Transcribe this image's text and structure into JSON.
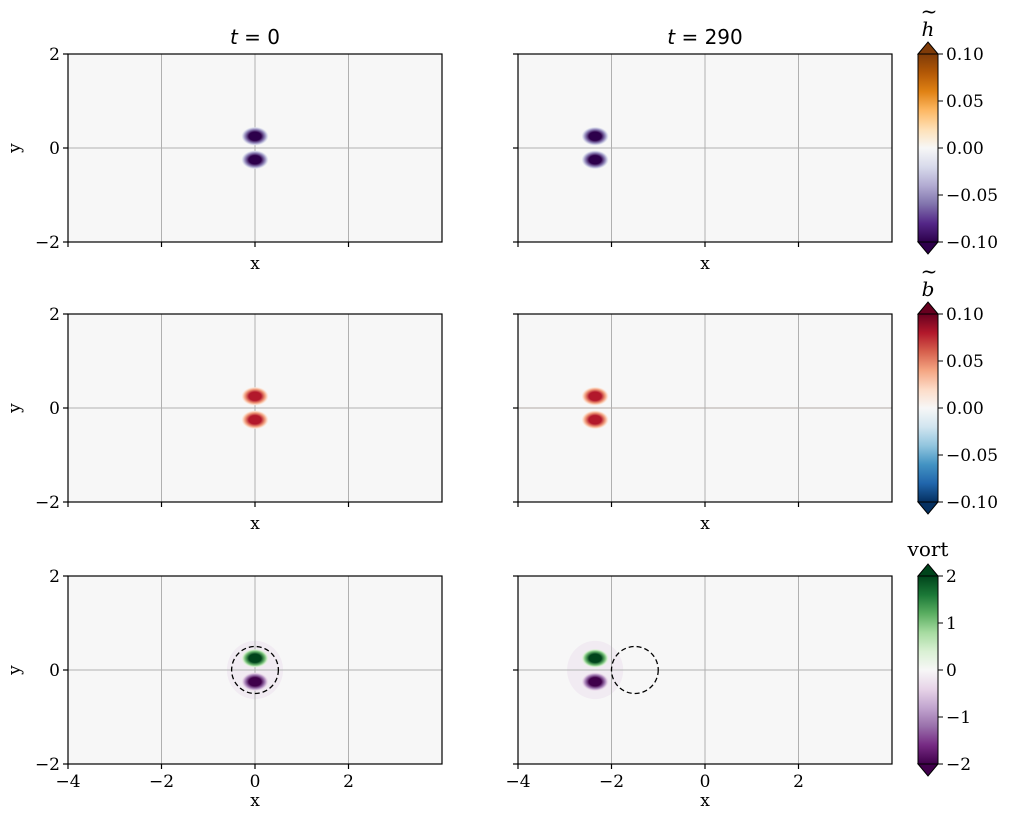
{
  "chart_data": {
    "type": "heatmap",
    "layout": "3 rows x 2 columns",
    "columns": [
      {
        "title_var": "t",
        "title_value": "= 0",
        "time": 0,
        "dipole_center_x": 0
      },
      {
        "title_var": "t",
        "title_value": "= 290",
        "time": 290,
        "dipole_center_x": -2.35
      }
    ],
    "xlabel": "x",
    "ylabel": "y",
    "xlim": [
      -4,
      4
    ],
    "ylim": [
      -2,
      2
    ],
    "xticks": [
      -4,
      -2,
      0,
      2
    ],
    "yticks": [
      -2,
      0,
      2
    ],
    "xtick_labels": [
      "−4",
      "−2",
      "0",
      "2"
    ],
    "ytick_labels": [
      "−2",
      "0",
      "2"
    ],
    "grid": true,
    "rows": [
      {
        "field": "h_tilde",
        "colorbar_label_base": "h",
        "colorbar_label_mark": "~",
        "colormap": "PuOr",
        "vmin": -0.1,
        "vmax": 0.1,
        "colorbar_ticks": [
          0.1,
          0.05,
          0.0,
          -0.05,
          -0.1
        ],
        "colorbar_tick_labels": [
          "0.10",
          "0.05",
          "0.00",
          "−0.05",
          "−0.10"
        ],
        "colorbar_extend": "both",
        "blobs": [
          {
            "y": 0.25,
            "value": -0.1
          },
          {
            "y": -0.25,
            "value": -0.1
          }
        ],
        "show_x_ticklabels": false,
        "dashed_circle": false
      },
      {
        "field": "b_tilde",
        "colorbar_label_base": "b",
        "colorbar_label_mark": "~",
        "colormap": "RdBu_r",
        "vmin": -0.1,
        "vmax": 0.1,
        "colorbar_ticks": [
          0.1,
          0.05,
          0.0,
          -0.05,
          -0.1
        ],
        "colorbar_tick_labels": [
          "0.10",
          "0.05",
          "0.00",
          "−0.05",
          "−0.10"
        ],
        "colorbar_extend": "both",
        "blobs": [
          {
            "y": 0.25,
            "value": 0.08
          },
          {
            "y": -0.25,
            "value": 0.08
          }
        ],
        "show_x_ticklabels": false,
        "dashed_circle": false
      },
      {
        "field": "vort",
        "colorbar_label_base": "vort",
        "colorbar_label_mark": "",
        "colormap": "PRGn",
        "vmin": -2,
        "vmax": 2,
        "colorbar_ticks": [
          2,
          1,
          0,
          -1,
          -2
        ],
        "colorbar_tick_labels": [
          "2",
          "1",
          "0",
          "−1",
          "−2"
        ],
        "colorbar_extend": "both",
        "blobs": [
          {
            "y": 0.25,
            "value": 2
          },
          {
            "y": -0.25,
            "value": -2
          }
        ],
        "show_x_ticklabels": true,
        "dashed_circle": true,
        "circle_radius": 0.5,
        "circle_centers_x": [
          0,
          -1.5
        ]
      }
    ]
  }
}
